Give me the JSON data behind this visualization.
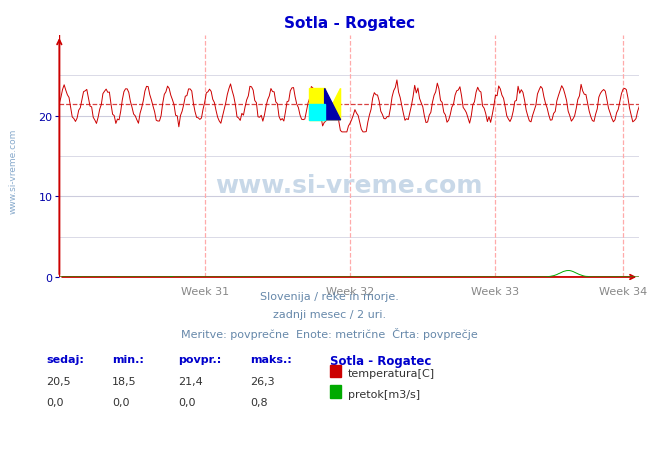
{
  "title": "Sotla - Rogatec",
  "title_color": "#0000cc",
  "bg_color": "#ffffff",
  "plot_bg_color": "#ffffff",
  "grid_color": "#ccccdd",
  "vgrid_color": "#ffaaaa",
  "temp_color": "#cc0000",
  "flow_color": "#00aa00",
  "avg_line_color": "#cc0000",
  "avg_value": 21.4,
  "y_min": 0,
  "y_max": 30,
  "y_ticks": [
    0,
    10,
    20
  ],
  "y_tick_color": "#0000aa",
  "x_week_labels": [
    "Week 31",
    "Week 32",
    "Week 33",
    "Week 34"
  ],
  "x_label_color": "#888888",
  "footer_line1": "Slovenija / reke in morje.",
  "footer_line2": "zadnji mesec / 2 uri.",
  "footer_line3": "Meritve: povprečne  Enote: metrične  Črta: povprečje",
  "footer_color": "#6688aa",
  "table_headers": [
    "sedaj:",
    "min.:",
    "povpr.:",
    "maks.:"
  ],
  "table_temp": [
    "20,5",
    "18,5",
    "21,4",
    "26,3"
  ],
  "table_flow": [
    "0,0",
    "0,0",
    "0,0",
    "0,8"
  ],
  "table_header_color": "#0000cc",
  "table_value_color": "#333333",
  "station_label": "Sotla - Rogatec",
  "station_label_color": "#0000cc",
  "legend_temp_label": "temperatura[C]",
  "legend_flow_label": "pretok[m3/s]",
  "legend_temp_color": "#cc0000",
  "legend_flow_color": "#00aa00",
  "watermark_text": "www.si-vreme.com",
  "watermark_color": "#c8d8e8",
  "left_watermark_color": "#88aacc",
  "axis_arrow_color": "#cc0000",
  "num_points": 360
}
